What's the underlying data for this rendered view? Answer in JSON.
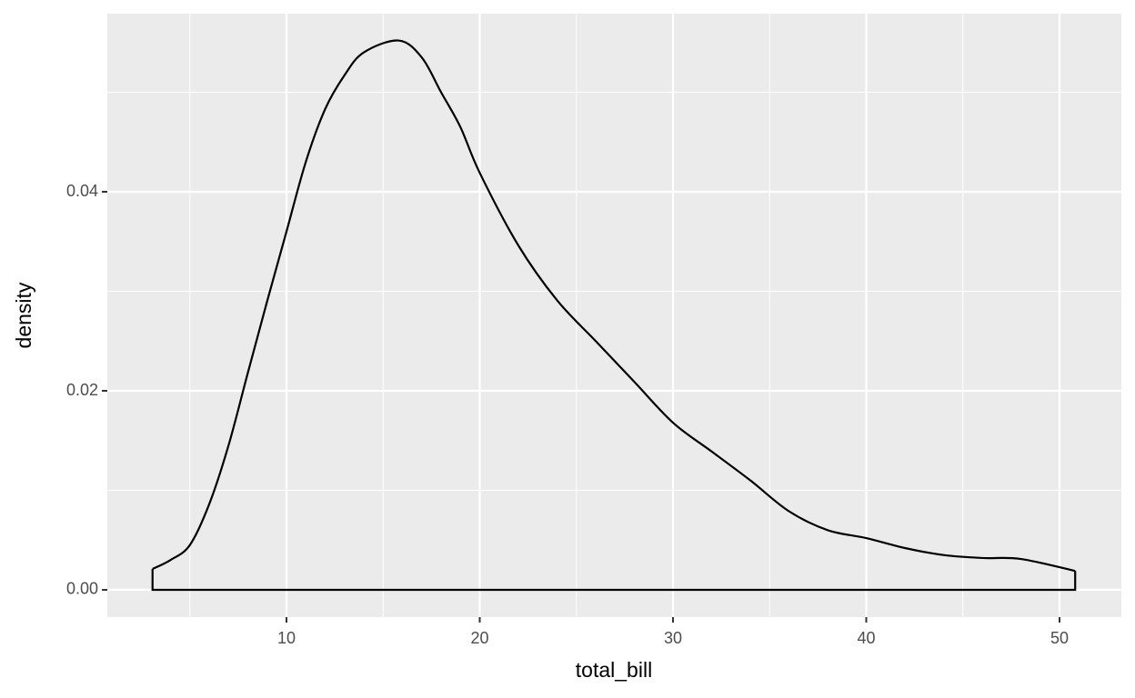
{
  "chart_data": {
    "type": "density",
    "x_label": "total_bill",
    "y_label": "density",
    "x": [
      3.07,
      4,
      5,
      6,
      7,
      8,
      9,
      10,
      11,
      12,
      13,
      14,
      15.8,
      17,
      18,
      19,
      20,
      22,
      24,
      26,
      28,
      30,
      32,
      34,
      36,
      38,
      40,
      42,
      44,
      46,
      48,
      50.81
    ],
    "values": [
      0.0021,
      0.003,
      0.0045,
      0.0086,
      0.0145,
      0.0218,
      0.029,
      0.036,
      0.043,
      0.0483,
      0.0517,
      0.054,
      0.0552,
      0.0535,
      0.05,
      0.0465,
      0.0419,
      0.0346,
      0.0291,
      0.025,
      0.0209,
      0.0168,
      0.0139,
      0.011,
      0.0079,
      0.006,
      0.0052,
      0.0042,
      0.0035,
      0.0032,
      0.0031,
      0.0019
    ],
    "color": "#000000",
    "xlim": [
      0.73,
      53.2
    ],
    "ylim": [
      -0.00274,
      0.0579
    ],
    "xticks": [
      10,
      20,
      30,
      40,
      50
    ],
    "minor_xticks": [
      5,
      15,
      25,
      35,
      45
    ],
    "yticks": [
      {
        "value": 0,
        "label": "0.00"
      },
      {
        "value": 0.02,
        "label": "0.02"
      },
      {
        "value": 0.04,
        "label": "0.04"
      }
    ],
    "minor_yticks": [
      0.01,
      0.03,
      0.05
    ],
    "grid": true
  }
}
